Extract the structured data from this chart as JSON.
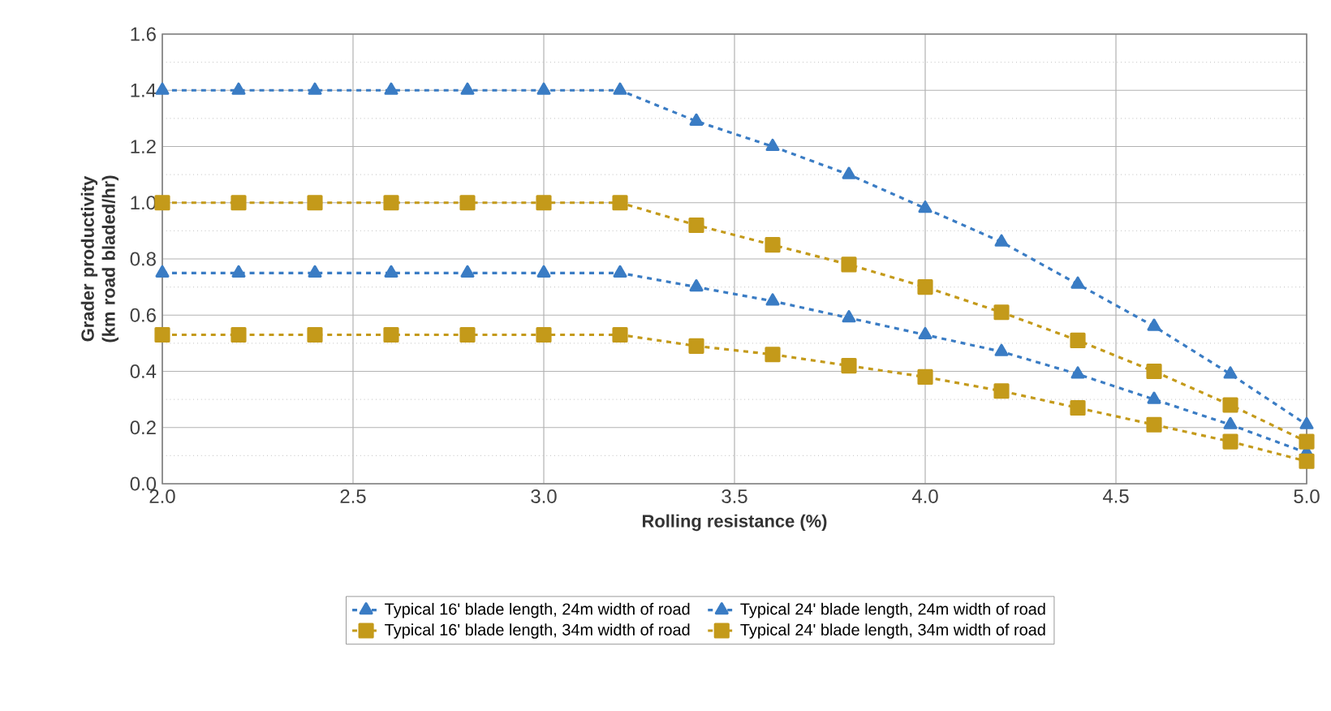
{
  "chart_data": {
    "type": "line",
    "xlabel": "Rolling resistance (%)",
    "ylabel": "Grader productivity (km road bladed/hr)",
    "x": [
      2.0,
      2.2,
      2.4,
      2.6,
      2.8,
      3.0,
      3.2,
      3.4,
      3.6,
      3.8,
      4.0,
      4.2,
      4.4,
      4.6,
      4.8,
      5.0
    ],
    "series": [
      {
        "name": "Typical 16' blade length, 24m width of road",
        "color": "#3a7cc4",
        "marker": "triangle",
        "values": [
          0.75,
          0.75,
          0.75,
          0.75,
          0.75,
          0.75,
          0.75,
          0.7,
          0.65,
          0.59,
          0.53,
          0.47,
          0.39,
          0.3,
          0.21,
          0.11
        ]
      },
      {
        "name": "Typical 24' blade length, 24m width of road",
        "color": "#3a7cc4",
        "marker": "triangle",
        "values": [
          1.4,
          1.4,
          1.4,
          1.4,
          1.4,
          1.4,
          1.4,
          1.29,
          1.2,
          1.1,
          0.98,
          0.86,
          0.71,
          0.56,
          0.39,
          0.21
        ]
      },
      {
        "name": "Typical 16' blade length, 34m width of road",
        "color": "#c49a1a",
        "marker": "square",
        "values": [
          0.53,
          0.53,
          0.53,
          0.53,
          0.53,
          0.53,
          0.53,
          0.49,
          0.46,
          0.42,
          0.38,
          0.33,
          0.27,
          0.21,
          0.15,
          0.08
        ]
      },
      {
        "name": "Typical 24' blade length, 34m width of road",
        "color": "#c49a1a",
        "marker": "square",
        "values": [
          1.0,
          1.0,
          1.0,
          1.0,
          1.0,
          1.0,
          1.0,
          0.92,
          0.85,
          0.78,
          0.7,
          0.61,
          0.51,
          0.4,
          0.28,
          0.15
        ]
      }
    ],
    "xlim": [
      2.0,
      5.0
    ],
    "xticks": [
      {
        "value": 2,
        "label": "2.0"
      },
      2.5,
      {
        "value": 3,
        "label": "3.0"
      },
      3.5,
      {
        "value": 4,
        "label": "4.0"
      },
      4.5,
      {
        "value": 5,
        "label": "5.0"
      }
    ],
    "ylim": [
      0.0,
      1.6
    ],
    "yticks": [
      {
        "value": 0,
        "label": "0.0"
      },
      0.2,
      0.4,
      0.6,
      0.8,
      {
        "value": 1,
        "label": "1.0"
      },
      1.2,
      1.4,
      1.6
    ],
    "grid": true,
    "legend": "bottom",
    "line_style": "dashed"
  }
}
